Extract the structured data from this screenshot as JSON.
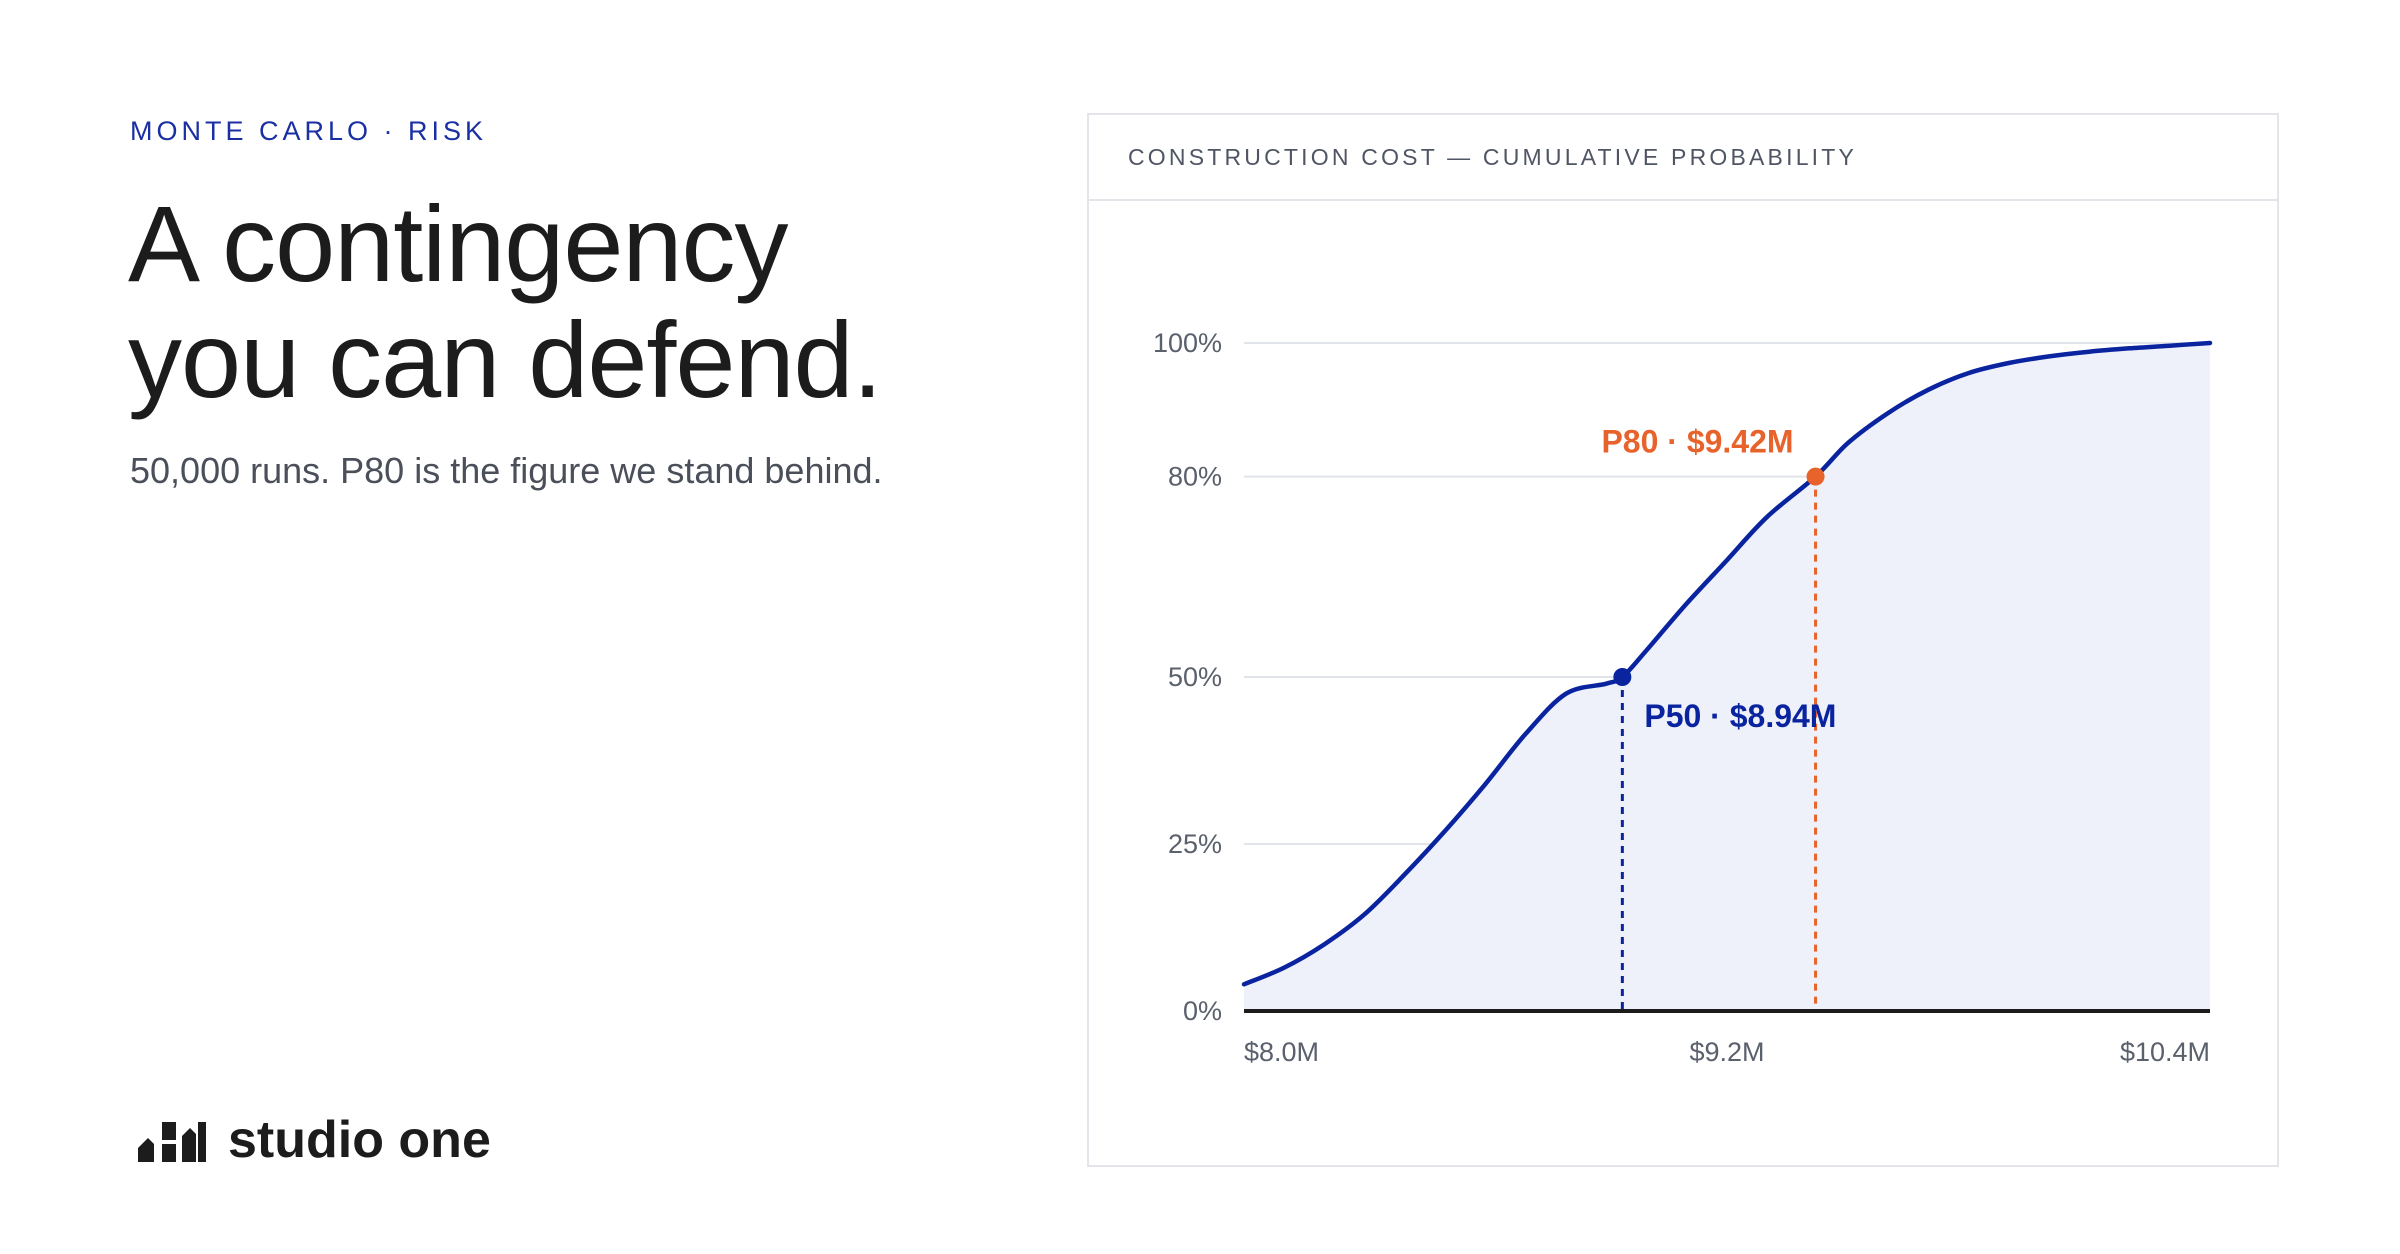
{
  "header": {
    "eyebrow": "MONTE CARLO · RISK",
    "headline_line1": "A contingency",
    "headline_line2": "you can defend.",
    "subline": "50,000 runs. P80 is the figure we stand behind."
  },
  "brand": {
    "name": "studio one",
    "mark_icon": "studio-one-logo-icon"
  },
  "colors": {
    "accent_blue": "#0a24a0",
    "accent_orange": "#e8632b",
    "fill": "#eef1fa",
    "grid": "#e1e4ea",
    "axis": "#1c1c1c"
  },
  "chart_data": {
    "type": "area",
    "title": "CONSTRUCTION COST — CUMULATIVE PROBABILITY",
    "xlabel": "",
    "ylabel": "",
    "xlim": [
      8.0,
      10.4
    ],
    "ylim": [
      0,
      100
    ],
    "x_ticks": [
      8.0,
      9.2,
      10.4
    ],
    "x_tick_labels": [
      "$8.0M",
      "$9.2M",
      "$10.4M"
    ],
    "y_ticks": [
      0,
      25,
      50,
      80,
      100
    ],
    "y_tick_labels": [
      "0%",
      "25%",
      "50%",
      "80%",
      "100%"
    ],
    "grid": true,
    "series": [
      {
        "x": [
          8.0,
          8.1,
          8.2,
          8.3,
          8.4,
          8.5,
          8.6,
          8.7,
          8.8,
          8.9,
          8.94,
          9.0,
          9.1,
          9.2,
          9.3,
          9.42,
          9.5,
          9.6,
          9.7,
          9.8,
          9.9,
          10.0,
          10.1,
          10.2,
          10.3,
          10.4
        ],
        "y": [
          4,
          6.5,
          10,
          14.5,
          20.5,
          27,
          34,
          41.5,
          47.5,
          49,
          50,
          54,
          61,
          67.5,
          74,
          80,
          85,
          89.5,
          93,
          95.5,
          97,
          98,
          98.7,
          99.2,
          99.6,
          100
        ]
      }
    ],
    "annotations": [
      {
        "label": "P50 · $8.94M",
        "x": 8.94,
        "y": 50,
        "color": "#0a24a0"
      },
      {
        "label": "P80 · $9.42M",
        "x": 9.42,
        "y": 80,
        "color": "#e8632b"
      }
    ]
  }
}
